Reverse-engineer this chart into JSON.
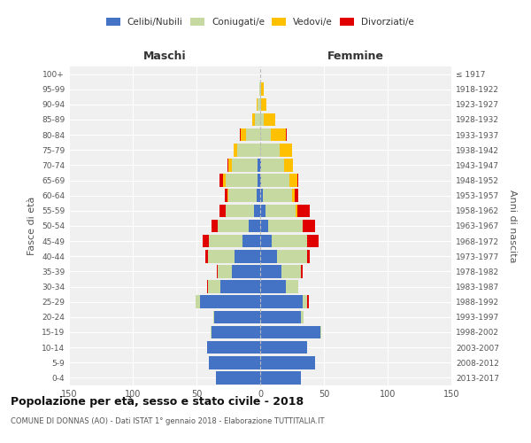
{
  "age_groups": [
    "0-4",
    "5-9",
    "10-14",
    "15-19",
    "20-24",
    "25-29",
    "30-34",
    "35-39",
    "40-44",
    "45-49",
    "50-54",
    "55-59",
    "60-64",
    "65-69",
    "70-74",
    "75-79",
    "80-84",
    "85-89",
    "90-94",
    "95-99",
    "100+"
  ],
  "birth_years": [
    "2013-2017",
    "2008-2012",
    "2003-2007",
    "1998-2002",
    "1993-1997",
    "1988-1992",
    "1983-1987",
    "1978-1982",
    "1973-1977",
    "1968-1972",
    "1963-1967",
    "1958-1962",
    "1953-1957",
    "1948-1952",
    "1943-1947",
    "1938-1942",
    "1933-1937",
    "1928-1932",
    "1923-1927",
    "1918-1922",
    "≤ 1917"
  ],
  "male": {
    "celibi": [
      35,
      40,
      42,
      38,
      36,
      47,
      31,
      22,
      20,
      14,
      9,
      5,
      3,
      2,
      2,
      0,
      0,
      0,
      0,
      0,
      0
    ],
    "coniugati": [
      0,
      0,
      0,
      1,
      1,
      4,
      10,
      11,
      21,
      26,
      24,
      22,
      22,
      25,
      20,
      18,
      11,
      4,
      2,
      1,
      0
    ],
    "vedovi": [
      0,
      0,
      0,
      0,
      0,
      0,
      0,
      0,
      0,
      0,
      0,
      0,
      1,
      2,
      3,
      3,
      4,
      2,
      1,
      0,
      0
    ],
    "divorziati": [
      0,
      0,
      0,
      0,
      0,
      0,
      1,
      1,
      2,
      5,
      5,
      5,
      2,
      3,
      1,
      0,
      1,
      0,
      0,
      0,
      0
    ]
  },
  "female": {
    "nubili": [
      32,
      43,
      37,
      47,
      32,
      33,
      20,
      17,
      13,
      9,
      6,
      4,
      2,
      1,
      1,
      0,
      0,
      0,
      0,
      0,
      0
    ],
    "coniugate": [
      0,
      0,
      0,
      1,
      2,
      4,
      10,
      15,
      24,
      28,
      27,
      24,
      23,
      22,
      18,
      15,
      8,
      3,
      1,
      1,
      0
    ],
    "vedove": [
      0,
      0,
      0,
      0,
      0,
      0,
      0,
      0,
      0,
      0,
      0,
      1,
      2,
      6,
      7,
      10,
      12,
      9,
      4,
      2,
      0
    ],
    "divorziate": [
      0,
      0,
      0,
      0,
      0,
      1,
      0,
      1,
      2,
      9,
      10,
      10,
      3,
      1,
      0,
      0,
      1,
      0,
      0,
      0,
      0
    ]
  },
  "colors": {
    "celibi": "#4472c4",
    "coniugati": "#c5d9a0",
    "vedovi": "#ffc000",
    "divorziati": "#e00000"
  },
  "title": "Popolazione per età, sesso e stato civile - 2018",
  "subtitle": "COMUNE DI DONNAS (AO) - Dati ISTAT 1° gennaio 2018 - Elaborazione TUTTITALIA.IT",
  "ylabel_left": "Fasce di età",
  "ylabel_right": "Anni di nascita",
  "xlabel_maschi": "Maschi",
  "xlabel_femmine": "Femmine",
  "xlim": 150,
  "legend_labels": [
    "Celibi/Nubili",
    "Coniugati/e",
    "Vedovi/e",
    "Divorziati/e"
  ],
  "bg_color": "#f0f0f0"
}
